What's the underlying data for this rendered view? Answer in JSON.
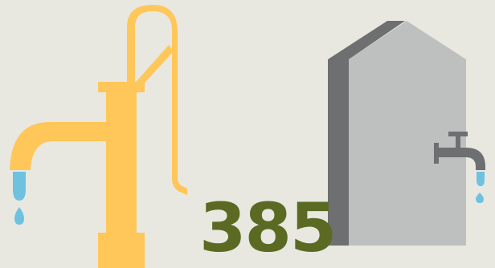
{
  "colors": {
    "background": "#e8e8e1",
    "pump": "#ffc659",
    "water": "#6ec2df",
    "tank_front": "#bebfbf",
    "tank_side": "#6e6f71",
    "faucet": "#6e6f71",
    "number": "#5b6a22"
  },
  "icons": {
    "left": "hand-pump-icon",
    "right": "water-tank-icon"
  },
  "count": {
    "value": "385"
  }
}
